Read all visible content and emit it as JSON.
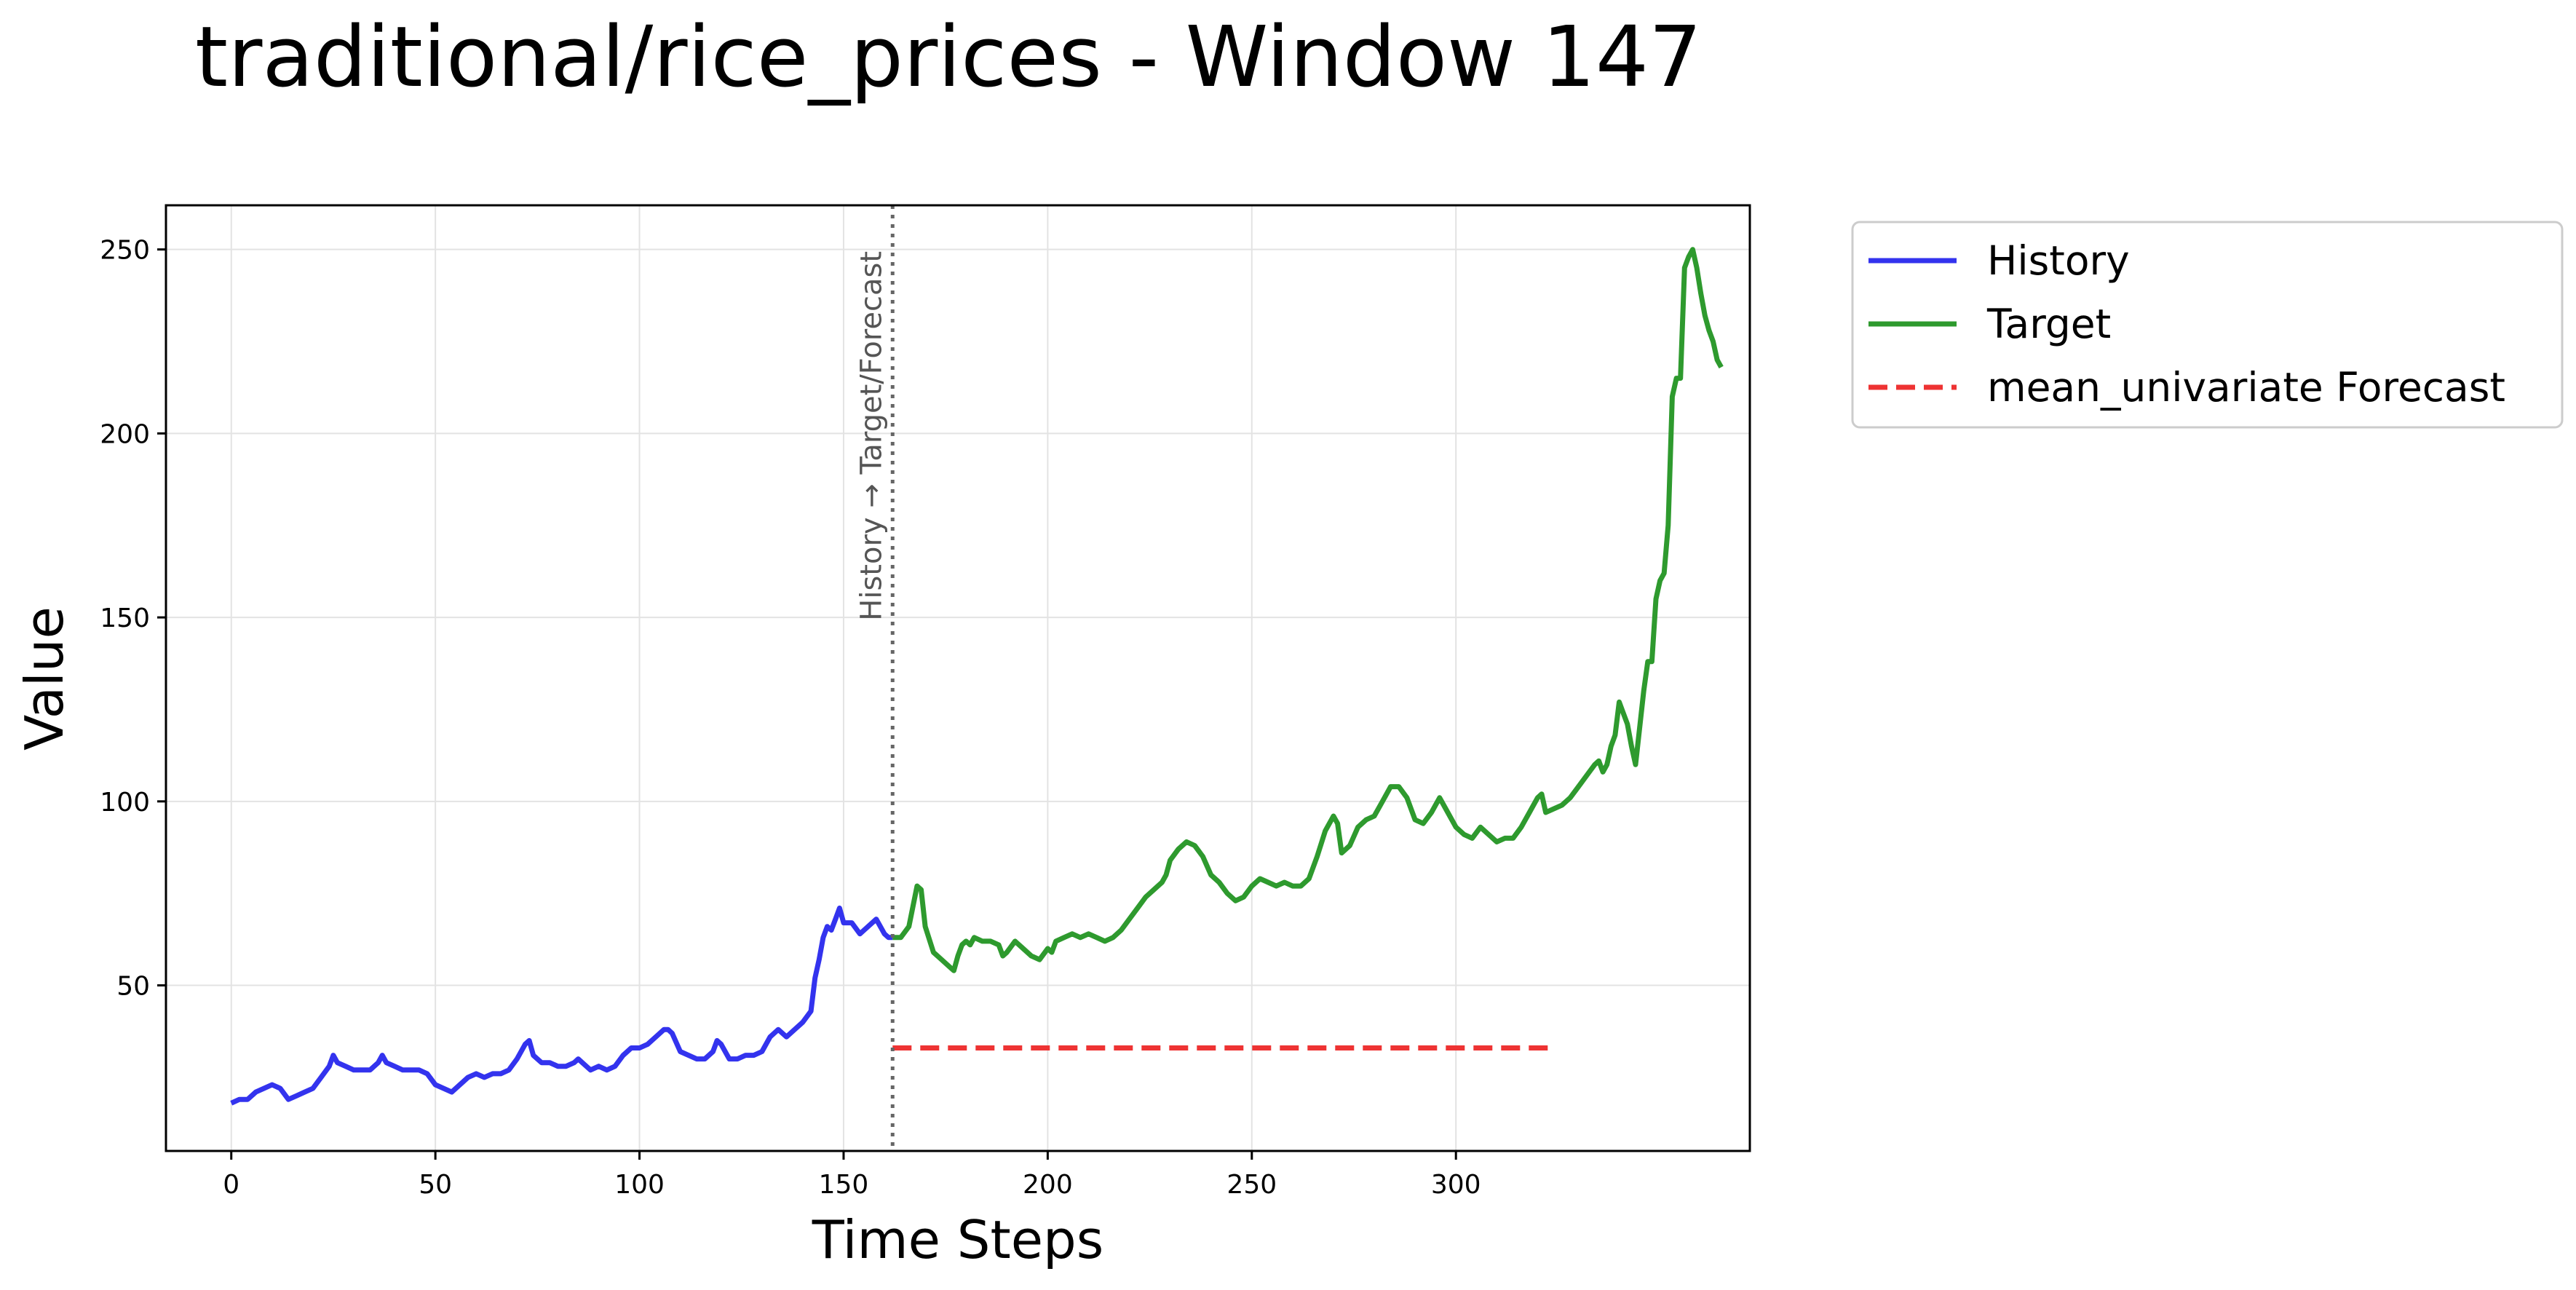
{
  "chart_data": {
    "type": "line",
    "title": "traditional/rice_prices - Window 147",
    "xlabel": "Time Steps",
    "ylabel": "Value",
    "xlim": [
      -16,
      339
    ],
    "ylim": [
      5,
      262
    ],
    "xticks": [
      0,
      50,
      100,
      150,
      200,
      250,
      300
    ],
    "yticks": [
      50,
      100,
      150,
      200,
      250
    ],
    "grid": true,
    "legend_position": "outside-top-right",
    "split_x": 162,
    "split_label": "History → Target/Forecast",
    "series": [
      {
        "name": "History",
        "color": "#3333ee",
        "dash": "solid",
        "points": [
          [
            0,
            18
          ],
          [
            2,
            19
          ],
          [
            4,
            19
          ],
          [
            6,
            21
          ],
          [
            8,
            22
          ],
          [
            10,
            23
          ],
          [
            12,
            22
          ],
          [
            14,
            19
          ],
          [
            16,
            20
          ],
          [
            18,
            21
          ],
          [
            20,
            22
          ],
          [
            22,
            25
          ],
          [
            24,
            28
          ],
          [
            25,
            31
          ],
          [
            26,
            29
          ],
          [
            28,
            28
          ],
          [
            30,
            27
          ],
          [
            32,
            27
          ],
          [
            34,
            27
          ],
          [
            36,
            29
          ],
          [
            37,
            31
          ],
          [
            38,
            29
          ],
          [
            40,
            28
          ],
          [
            42,
            27
          ],
          [
            44,
            27
          ],
          [
            46,
            27
          ],
          [
            48,
            26
          ],
          [
            50,
            23
          ],
          [
            52,
            22
          ],
          [
            54,
            21
          ],
          [
            56,
            23
          ],
          [
            58,
            25
          ],
          [
            60,
            26
          ],
          [
            62,
            25
          ],
          [
            64,
            26
          ],
          [
            66,
            26
          ],
          [
            68,
            27
          ],
          [
            70,
            30
          ],
          [
            72,
            34
          ],
          [
            73,
            35
          ],
          [
            74,
            31
          ],
          [
            76,
            29
          ],
          [
            78,
            29
          ],
          [
            80,
            28
          ],
          [
            82,
            28
          ],
          [
            84,
            29
          ],
          [
            85,
            30
          ],
          [
            86,
            29
          ],
          [
            88,
            27
          ],
          [
            90,
            28
          ],
          [
            92,
            27
          ],
          [
            94,
            28
          ],
          [
            96,
            31
          ],
          [
            98,
            33
          ],
          [
            100,
            33
          ],
          [
            102,
            34
          ],
          [
            104,
            36
          ],
          [
            106,
            38
          ],
          [
            107,
            38
          ],
          [
            108,
            37
          ],
          [
            110,
            32
          ],
          [
            112,
            31
          ],
          [
            114,
            30
          ],
          [
            116,
            30
          ],
          [
            118,
            32
          ],
          [
            119,
            35
          ],
          [
            120,
            34
          ],
          [
            122,
            30
          ],
          [
            124,
            30
          ],
          [
            126,
            31
          ],
          [
            128,
            31
          ],
          [
            130,
            32
          ],
          [
            132,
            36
          ],
          [
            134,
            38
          ],
          [
            136,
            36
          ],
          [
            138,
            38
          ],
          [
            140,
            40
          ],
          [
            142,
            43
          ],
          [
            143,
            52
          ],
          [
            144,
            57
          ],
          [
            145,
            63
          ],
          [
            146,
            66
          ],
          [
            147,
            65
          ],
          [
            148,
            68
          ],
          [
            149,
            71
          ],
          [
            150,
            67
          ],
          [
            152,
            67
          ],
          [
            154,
            64
          ],
          [
            156,
            66
          ],
          [
            158,
            68
          ],
          [
            160,
            64
          ],
          [
            161,
            63
          ],
          [
            162,
            63
          ]
        ]
      },
      {
        "name": "Target",
        "color": "#2e9a2e",
        "dash": "solid",
        "points": [
          [
            162,
            63
          ],
          [
            164,
            63
          ],
          [
            166,
            66
          ],
          [
            168,
            77
          ],
          [
            169,
            76
          ],
          [
            170,
            66
          ],
          [
            172,
            59
          ],
          [
            174,
            57
          ],
          [
            176,
            55
          ],
          [
            177,
            54
          ],
          [
            178,
            58
          ],
          [
            179,
            61
          ],
          [
            180,
            62
          ],
          [
            181,
            61
          ],
          [
            182,
            63
          ],
          [
            184,
            62
          ],
          [
            186,
            62
          ],
          [
            188,
            61
          ],
          [
            189,
            58
          ],
          [
            190,
            59
          ],
          [
            192,
            62
          ],
          [
            194,
            60
          ],
          [
            196,
            58
          ],
          [
            198,
            57
          ],
          [
            200,
            60
          ],
          [
            201,
            59
          ],
          [
            202,
            62
          ],
          [
            204,
            63
          ],
          [
            206,
            64
          ],
          [
            208,
            63
          ],
          [
            210,
            64
          ],
          [
            212,
            63
          ],
          [
            214,
            62
          ],
          [
            216,
            63
          ],
          [
            218,
            65
          ],
          [
            220,
            68
          ],
          [
            222,
            71
          ],
          [
            224,
            74
          ],
          [
            226,
            76
          ],
          [
            228,
            78
          ],
          [
            229,
            80
          ],
          [
            230,
            84
          ],
          [
            232,
            87
          ],
          [
            234,
            89
          ],
          [
            236,
            88
          ],
          [
            238,
            85
          ],
          [
            240,
            80
          ],
          [
            242,
            78
          ],
          [
            244,
            75
          ],
          [
            246,
            73
          ],
          [
            248,
            74
          ],
          [
            250,
            77
          ],
          [
            252,
            79
          ],
          [
            254,
            78
          ],
          [
            256,
            77
          ],
          [
            258,
            78
          ],
          [
            260,
            77
          ],
          [
            262,
            77
          ],
          [
            264,
            79
          ],
          [
            266,
            85
          ],
          [
            268,
            92
          ],
          [
            270,
            96
          ],
          [
            271,
            94
          ],
          [
            272,
            86
          ],
          [
            274,
            88
          ],
          [
            276,
            93
          ],
          [
            278,
            95
          ],
          [
            280,
            96
          ],
          [
            282,
            100
          ],
          [
            284,
            104
          ],
          [
            286,
            104
          ],
          [
            288,
            101
          ],
          [
            290,
            95
          ],
          [
            292,
            94
          ],
          [
            294,
            97
          ],
          [
            296,
            101
          ],
          [
            298,
            97
          ],
          [
            300,
            93
          ],
          [
            302,
            91
          ],
          [
            304,
            90
          ],
          [
            306,
            93
          ],
          [
            308,
            91
          ],
          [
            310,
            89
          ],
          [
            312,
            90
          ],
          [
            314,
            90
          ],
          [
            316,
            93
          ],
          [
            318,
            97
          ],
          [
            320,
            101
          ],
          [
            321,
            102
          ],
          [
            322,
            97
          ],
          [
            324,
            98
          ],
          [
            326,
            99
          ],
          [
            328,
            101
          ],
          [
            330,
            104
          ],
          [
            332,
            107
          ],
          [
            334,
            110
          ],
          [
            335,
            111
          ],
          [
            336,
            108
          ],
          [
            337,
            110
          ],
          [
            338,
            115
          ],
          [
            339,
            118
          ],
          [
            340,
            127
          ],
          [
            341,
            124
          ],
          [
            342,
            121
          ],
          [
            343,
            115
          ],
          [
            344,
            110
          ],
          [
            345,
            120
          ],
          [
            346,
            130
          ],
          [
            347,
            138
          ],
          [
            348,
            138
          ],
          [
            349,
            155
          ],
          [
            350,
            160
          ],
          [
            351,
            162
          ],
          [
            352,
            175
          ],
          [
            353,
            210
          ],
          [
            354,
            215
          ],
          [
            355,
            215
          ],
          [
            356,
            245
          ],
          [
            357,
            248
          ],
          [
            358,
            250
          ],
          [
            359,
            245
          ],
          [
            360,
            238
          ],
          [
            361,
            232
          ],
          [
            362,
            228
          ],
          [
            363,
            225
          ],
          [
            364,
            220
          ],
          [
            365,
            218
          ]
        ]
      },
      {
        "name": "mean_univariate Forecast",
        "color": "#ee3333",
        "dash": "dashed",
        "points": [
          [
            162,
            33
          ],
          [
            323,
            33
          ]
        ]
      }
    ]
  }
}
